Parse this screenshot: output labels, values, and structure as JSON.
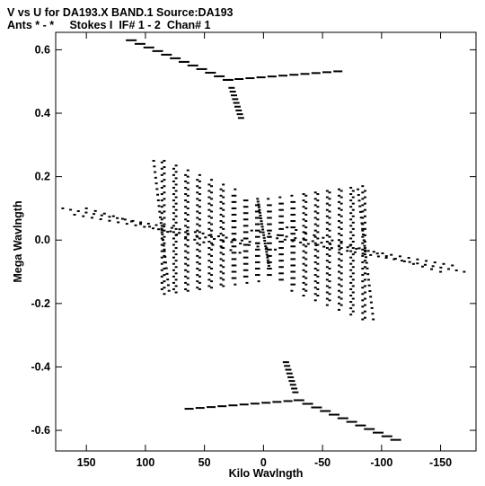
{
  "chart_data": {
    "type": "scatter",
    "title": "V vs U for DA193.X BAND.1   Source:DA193",
    "subtitle": "Ants * - *     Stokes I  IF# 1 - 2  Chan# 1",
    "xlabel": "Kilo Wavlngth",
    "ylabel": "Mega Wavlngth",
    "x_unit_factor": 0.001,
    "xlim": [
      176,
      -180
    ],
    "ylim": [
      -0.665,
      0.655
    ],
    "xticks": [
      150,
      100,
      50,
      0,
      -50,
      -100,
      -150
    ],
    "xtick_labels": [
      "150",
      "100",
      "50",
      "0",
      "-50",
      "-100",
      "-150"
    ],
    "yticks": [
      0.6,
      0.4,
      0.2,
      0.0,
      -0.2,
      -0.4,
      -0.6
    ],
    "ytick_labels": [
      "0.6",
      "0.4",
      "0.2",
      "0.0",
      "-0.2",
      "-0.4",
      "-0.6"
    ],
    "grid": false,
    "marker": "short horizontal dash",
    "colors": {
      "marks": "#000000",
      "frame": "#000000",
      "background": "#ffffff"
    },
    "tracks": [
      {
        "from": [
          112,
          0.63
        ],
        "to": [
          30,
          0.505
        ],
        "n": 12,
        "w": 12
      },
      {
        "from": [
          30,
          0.505
        ],
        "to": [
          -63,
          0.532
        ],
        "n": 11,
        "w": 10
      },
      {
        "from": [
          27,
          0.48
        ],
        "to": [
          19,
          0.385
        ],
        "n": 9,
        "w": 7
      },
      {
        "from": [
          -112,
          -0.63
        ],
        "to": [
          -30,
          -0.505
        ],
        "n": 12,
        "w": 12
      },
      {
        "from": [
          -30,
          -0.505
        ],
        "to": [
          63,
          -0.532
        ],
        "n": 11,
        "w": 10
      },
      {
        "from": [
          -27,
          -0.48
        ],
        "to": [
          -19,
          -0.385
        ],
        "n": 9,
        "w": 7
      },
      {
        "from": [
          93,
          0.25
        ],
        "to": [
          80,
          -0.16
        ],
        "n": 24,
        "w": 3
      },
      {
        "from": [
          -93,
          -0.25
        ],
        "to": [
          -80,
          0.16
        ],
        "n": 24,
        "w": 3
      },
      {
        "from": [
          5,
          0.13
        ],
        "to": [
          -5,
          -0.09
        ],
        "n": 26,
        "w": 3
      },
      {
        "from": [
          170,
          0.1
        ],
        "to": [
          5,
          -0.01
        ],
        "n": 26,
        "w": 3
      },
      {
        "from": [
          -170,
          -0.1
        ],
        "to": [
          -5,
          0.01
        ],
        "n": 26,
        "w": 3
      },
      {
        "from": [
          160,
          0.08
        ],
        "to": [
          -10,
          -0.03
        ],
        "n": 24,
        "w": 3
      },
      {
        "from": [
          -160,
          -0.08
        ],
        "to": [
          10,
          0.03
        ],
        "n": 24,
        "w": 3
      },
      {
        "from": [
          150,
          0.1
        ],
        "to": [
          20,
          -0.04
        ],
        "n": 18,
        "w": 3
      },
      {
        "from": [
          -150,
          -0.1
        ],
        "to": [
          -20,
          0.04
        ],
        "n": 18,
        "w": 3
      }
    ],
    "lattices": [
      {
        "u": [
          86,
          76,
          66,
          56,
          46,
          36,
          26,
          16,
          6,
          -4,
          -14,
          -24,
          -34,
          -44,
          -54,
          -64,
          -74,
          -84
        ],
        "v_top": [
          0.245,
          0.225,
          0.205,
          0.19,
          0.175,
          0.16,
          0.14,
          0.125,
          0.11,
          0.13,
          0.135,
          0.14,
          0.145,
          0.15,
          0.155,
          0.16,
          0.165,
          0.17
        ],
        "v_bot": [
          -0.155,
          -0.16,
          -0.155,
          -0.15,
          -0.145,
          -0.14,
          -0.135,
          -0.125,
          -0.115,
          -0.12,
          -0.14,
          -0.16,
          -0.175,
          -0.19,
          -0.205,
          -0.22,
          -0.235,
          -0.25
        ],
        "step": 0.02
      }
    ]
  }
}
